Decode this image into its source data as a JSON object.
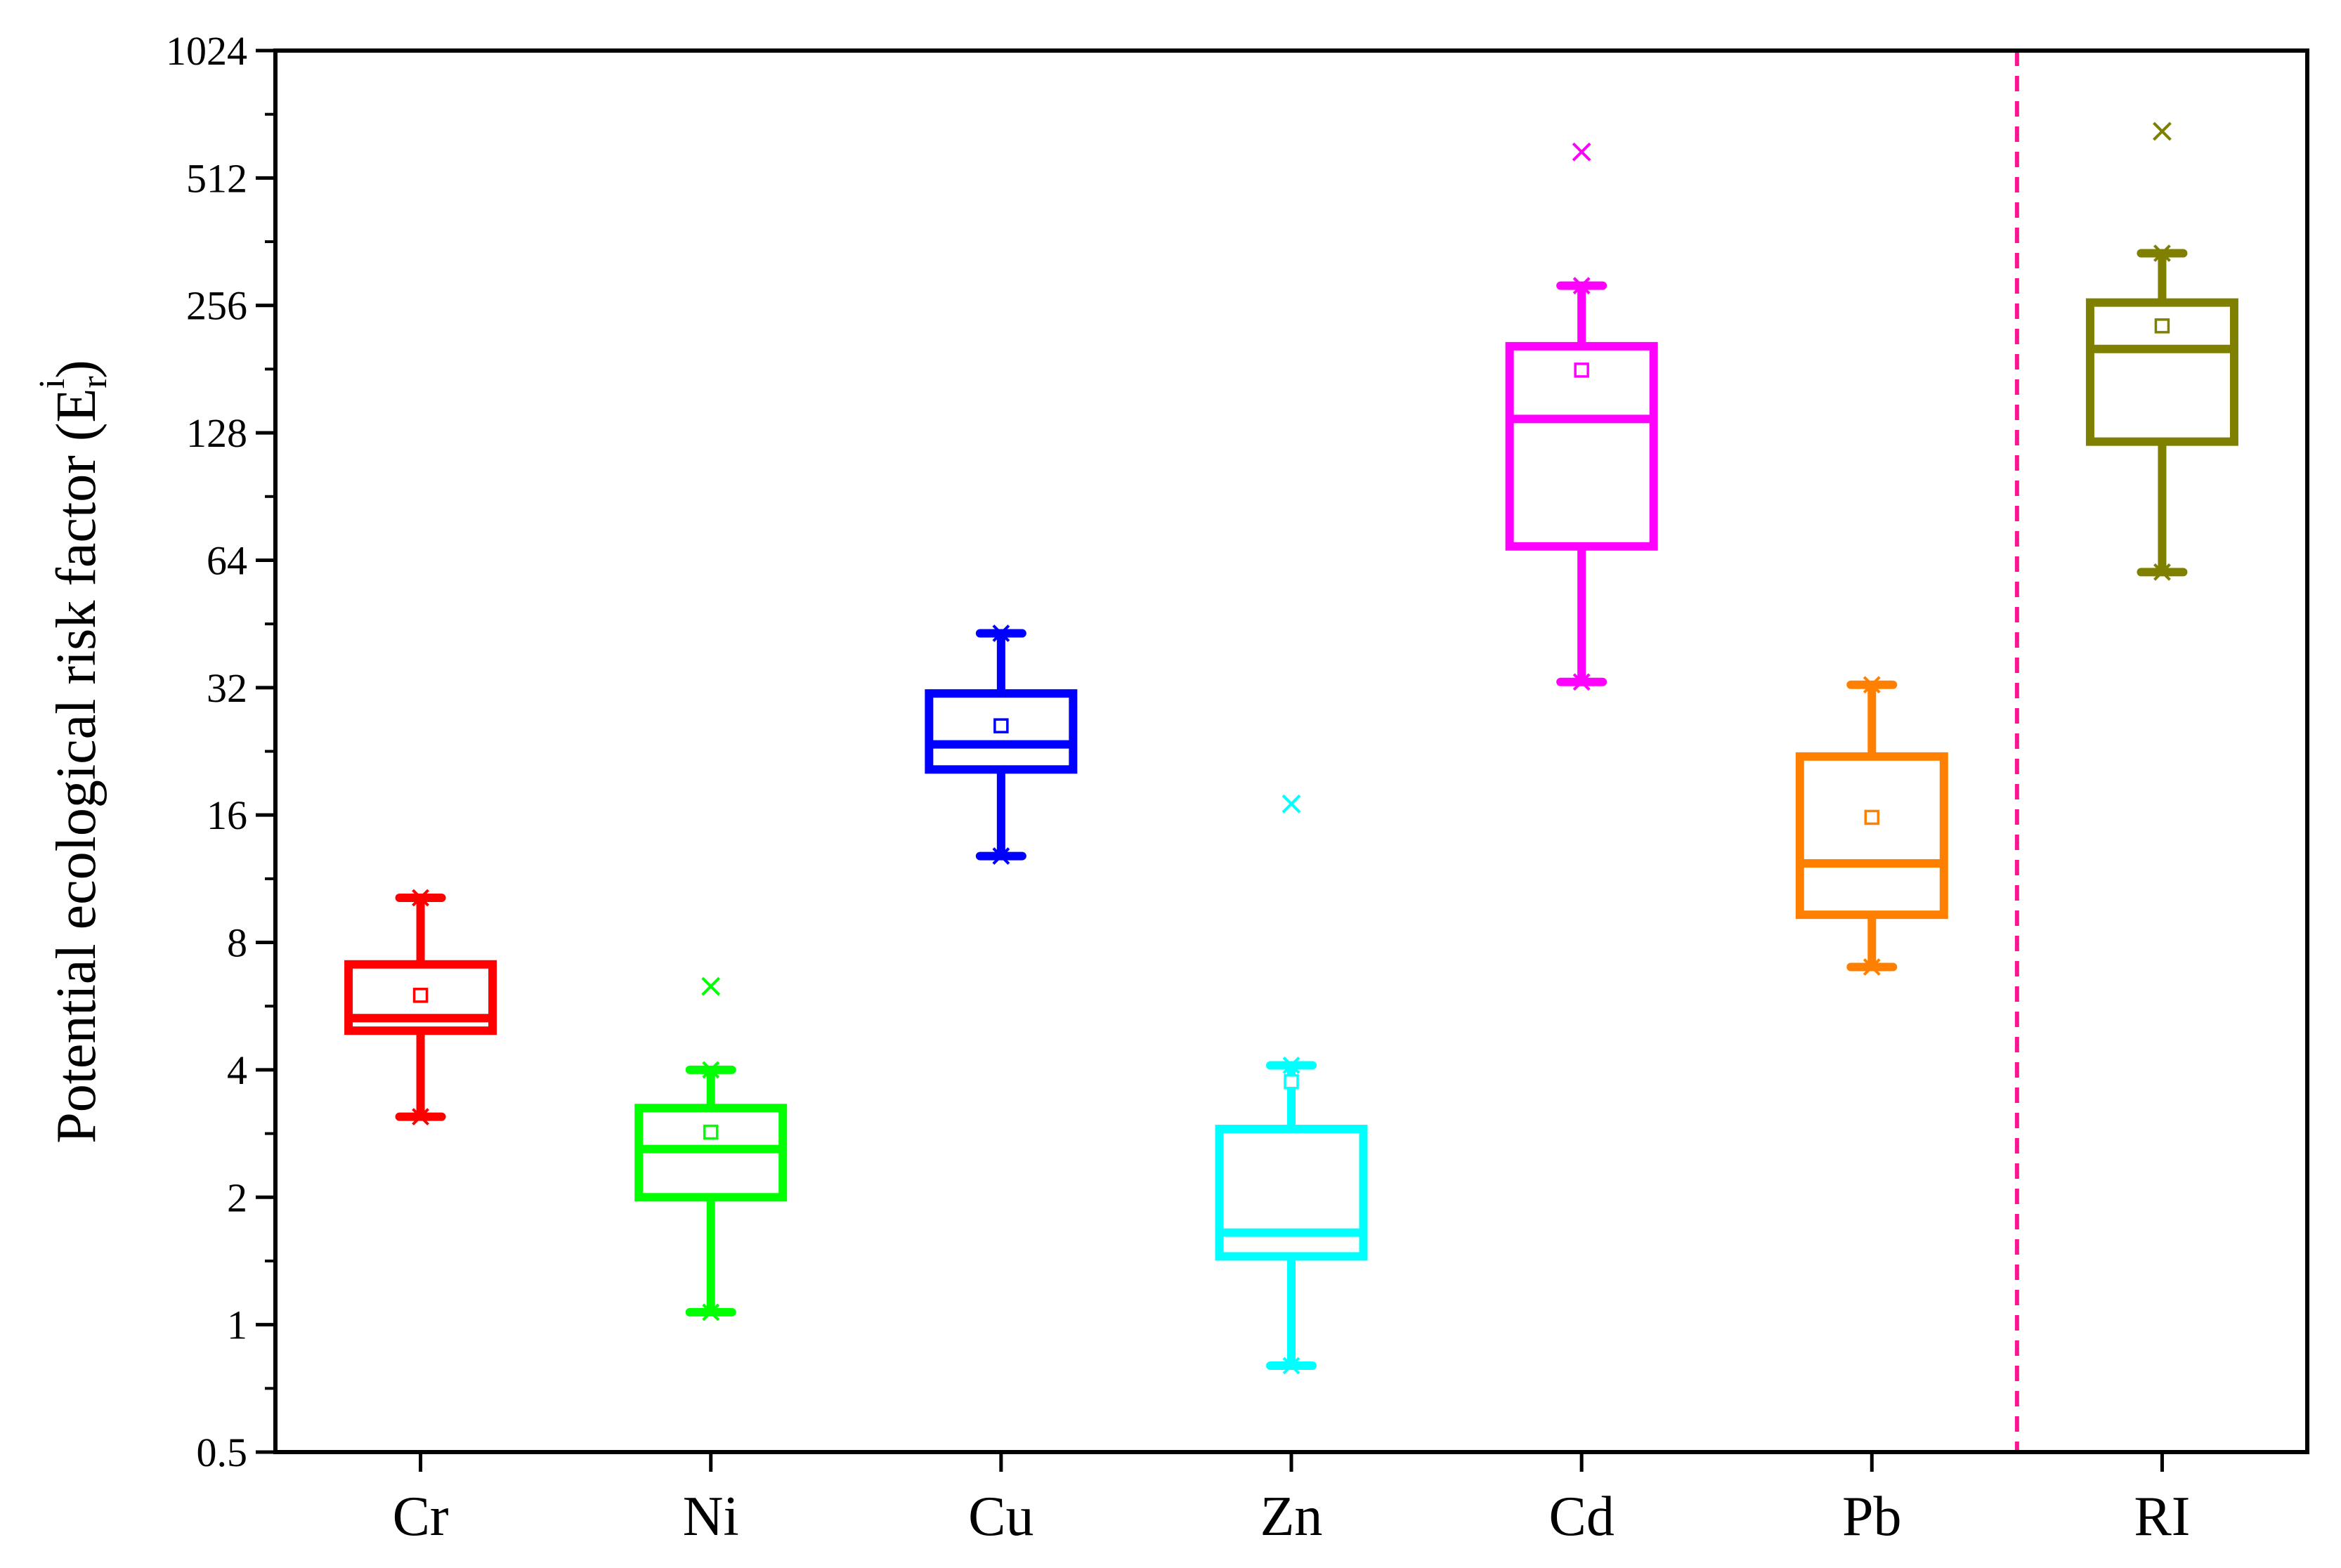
{
  "chart_data": {
    "type": "box",
    "ylabel": "Potential ecological risk factor (E",
    "ylabel_sub": "r",
    "ylabel_sup": "i",
    "ylabel_close": ")",
    "yscale": "log2",
    "ylim": [
      0.5,
      1024
    ],
    "yticks": [
      0.5,
      1,
      2,
      4,
      8,
      16,
      32,
      64,
      128,
      256,
      512,
      1024
    ],
    "ytick_labels": [
      "0.5",
      "1",
      "2",
      "4",
      "8",
      "16",
      "32",
      "64",
      "128",
      "256",
      "512",
      "1024"
    ],
    "divider": {
      "between": [
        "Pb",
        "RI"
      ],
      "color": "#ff1493",
      "style": "dashed"
    },
    "series": [
      {
        "name": "Cr",
        "color": "#ff0000",
        "min": 3.1,
        "q1": 4.95,
        "median": 5.3,
        "q3": 7.1,
        "max": 10.2,
        "mean": 6.0,
        "outliers": []
      },
      {
        "name": "Ni",
        "color": "#00ff00",
        "min": 1.07,
        "q1": 2.0,
        "median": 2.6,
        "q3": 3.25,
        "max": 4.0,
        "mean": 2.85,
        "outliers": [
          6.3
        ]
      },
      {
        "name": "Cu",
        "color": "#0000ff",
        "min": 12.8,
        "q1": 20.5,
        "median": 23.5,
        "q3": 31.0,
        "max": 43.0,
        "mean": 26.0,
        "outliers": []
      },
      {
        "name": "Zn",
        "color": "#00ffff",
        "min": 0.8,
        "q1": 1.45,
        "median": 1.65,
        "q3": 2.9,
        "max": 4.1,
        "mean": 3.75,
        "outliers": [
          17.0
        ]
      },
      {
        "name": "Cd",
        "color": "#ff00ff",
        "min": 33.0,
        "q1": 69.0,
        "median": 138.0,
        "q3": 205.0,
        "max": 285.0,
        "mean": 180.0,
        "outliers": [
          590.0
        ]
      },
      {
        "name": "Pb",
        "color": "#ff8000",
        "min": 7.0,
        "q1": 9.3,
        "median": 12.3,
        "q3": 22.0,
        "max": 32.5,
        "mean": 15.8,
        "outliers": []
      },
      {
        "name": "RI",
        "color": "#808000",
        "min": 60.0,
        "q1": 122.0,
        "median": 202.0,
        "q3": 260.0,
        "max": 340.0,
        "mean": 229.0,
        "outliers": [
          660.0
        ]
      }
    ]
  }
}
